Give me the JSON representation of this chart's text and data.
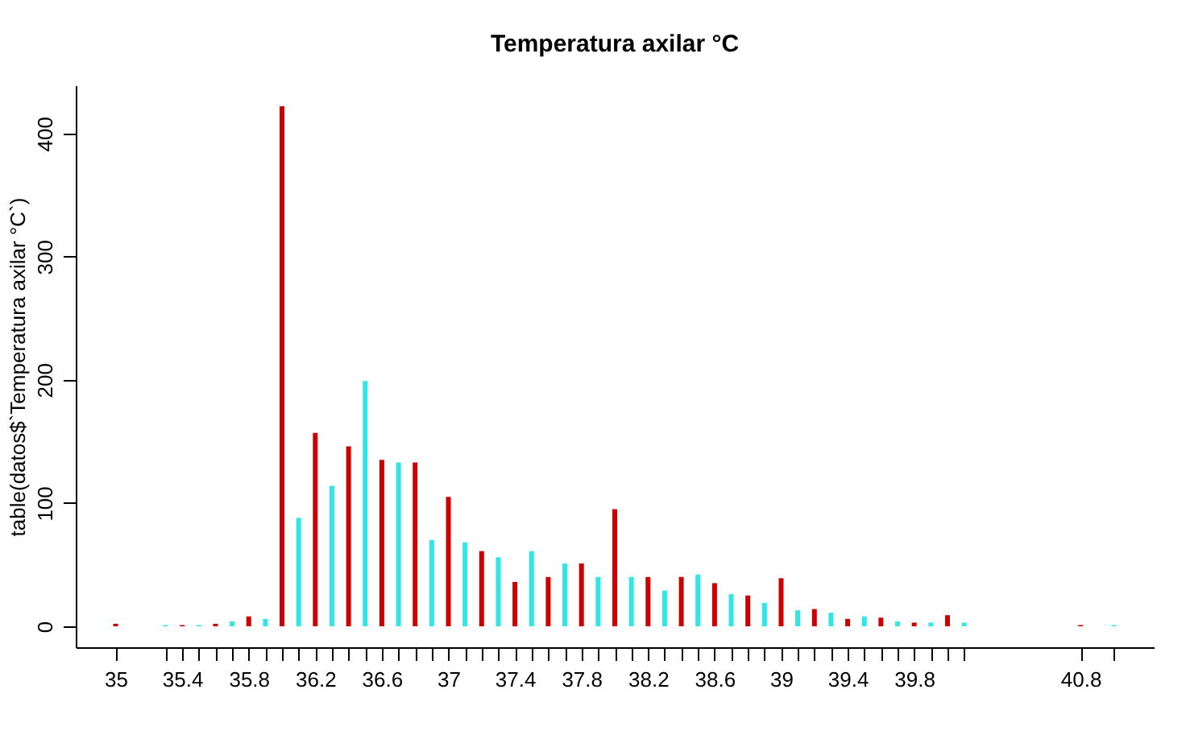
{
  "chart_data": {
    "type": "bar",
    "title": "Temperatura axilar °C",
    "ylabel": "table(datos$`Temperatura axilar °C`)",
    "x": [
      35,
      35.3,
      35.4,
      35.5,
      35.6,
      35.7,
      35.8,
      35.9,
      36.0,
      36.1,
      36.2,
      36.3,
      36.4,
      36.5,
      36.6,
      36.7,
      36.8,
      36.9,
      37.0,
      37.1,
      37.2,
      37.3,
      37.4,
      37.5,
      37.6,
      37.7,
      37.8,
      37.9,
      38.0,
      38.1,
      38.2,
      38.3,
      38.4,
      38.5,
      38.6,
      38.7,
      38.8,
      38.9,
      39.0,
      39.1,
      39.2,
      39.3,
      39.4,
      39.5,
      39.6,
      39.7,
      39.8,
      39.9,
      40.0,
      40.1,
      40.8,
      41.0
    ],
    "values": [
      2,
      1,
      1,
      1,
      2,
      4,
      8,
      6,
      422,
      88,
      157,
      114,
      146,
      199,
      135,
      133,
      133,
      70,
      105,
      68,
      61,
      56,
      36,
      61,
      40,
      51,
      51,
      40,
      95,
      40,
      40,
      29,
      40,
      42,
      35,
      26,
      25,
      19,
      39,
      13,
      14,
      11,
      6,
      8,
      7,
      4,
      3,
      3,
      9,
      3,
      1,
      1
    ],
    "colors": [
      "#cc0000",
      "#33e6e6",
      "#cc0000",
      "#33e6e6",
      "#cc0000",
      "#33e6e6",
      "#cc0000",
      "#33e6e6",
      "#cc0000",
      "#33e6e6",
      "#cc0000",
      "#33e6e6",
      "#cc0000",
      "#33e6e6",
      "#cc0000",
      "#33e6e6",
      "#cc0000",
      "#33e6e6",
      "#cc0000",
      "#33e6e6",
      "#cc0000",
      "#33e6e6",
      "#cc0000",
      "#33e6e6",
      "#cc0000",
      "#33e6e6",
      "#cc0000",
      "#33e6e6",
      "#cc0000",
      "#33e6e6",
      "#cc0000",
      "#33e6e6",
      "#cc0000",
      "#33e6e6",
      "#cc0000",
      "#33e6e6",
      "#cc0000",
      "#33e6e6",
      "#cc0000",
      "#33e6e6",
      "#cc0000",
      "#33e6e6",
      "#cc0000",
      "#33e6e6",
      "#cc0000",
      "#33e6e6",
      "#cc0000",
      "#33e6e6",
      "#cc0000",
      "#33e6e6",
      "#cc0000",
      "#33e6e6"
    ],
    "xlim": [
      34.76,
      41.24
    ],
    "ylim": [
      -17,
      439
    ],
    "xticks": [
      35,
      {
        "value": 35.3,
        "label": null
      },
      35.4,
      {
        "value": 35.5,
        "label": null
      },
      {
        "value": 35.6,
        "label": null
      },
      {
        "value": 35.7,
        "label": null
      },
      35.8,
      {
        "value": 35.9,
        "label": null
      },
      {
        "value": 36.0,
        "label": null
      },
      {
        "value": 36.1,
        "label": null
      },
      36.2,
      {
        "value": 36.3,
        "label": null
      },
      {
        "value": 36.4,
        "label": null
      },
      {
        "value": 36.5,
        "label": null
      },
      36.6,
      {
        "value": 36.7,
        "label": null
      },
      {
        "value": 36.8,
        "label": null
      },
      {
        "value": 36.9,
        "label": null
      },
      37,
      {
        "value": 37.1,
        "label": null
      },
      {
        "value": 37.2,
        "label": null
      },
      {
        "value": 37.3,
        "label": null
      },
      37.4,
      {
        "value": 37.5,
        "label": null
      },
      {
        "value": 37.6,
        "label": null
      },
      {
        "value": 37.7,
        "label": null
      },
      37.8,
      {
        "value": 37.9,
        "label": null
      },
      {
        "value": 38.0,
        "label": null
      },
      {
        "value": 38.1,
        "label": null
      },
      38.2,
      {
        "value": 38.3,
        "label": null
      },
      {
        "value": 38.4,
        "label": null
      },
      {
        "value": 38.5,
        "label": null
      },
      38.6,
      {
        "value": 38.7,
        "label": null
      },
      {
        "value": 38.8,
        "label": null
      },
      {
        "value": 38.9,
        "label": null
      },
      39,
      {
        "value": 39.1,
        "label": null
      },
      {
        "value": 39.2,
        "label": null
      },
      {
        "value": 39.3,
        "label": null
      },
      39.4,
      {
        "value": 39.5,
        "label": null
      },
      {
        "value": 39.6,
        "label": null
      },
      {
        "value": 39.7,
        "label": null
      },
      39.8,
      {
        "value": 39.9,
        "label": null
      },
      {
        "value": 40.0,
        "label": null
      },
      {
        "value": 40.1,
        "label": null
      },
      40.8,
      {
        "value": 41.0,
        "label": null
      }
    ],
    "yticks": [
      0,
      100,
      200,
      300,
      400
    ],
    "grid": false
  }
}
